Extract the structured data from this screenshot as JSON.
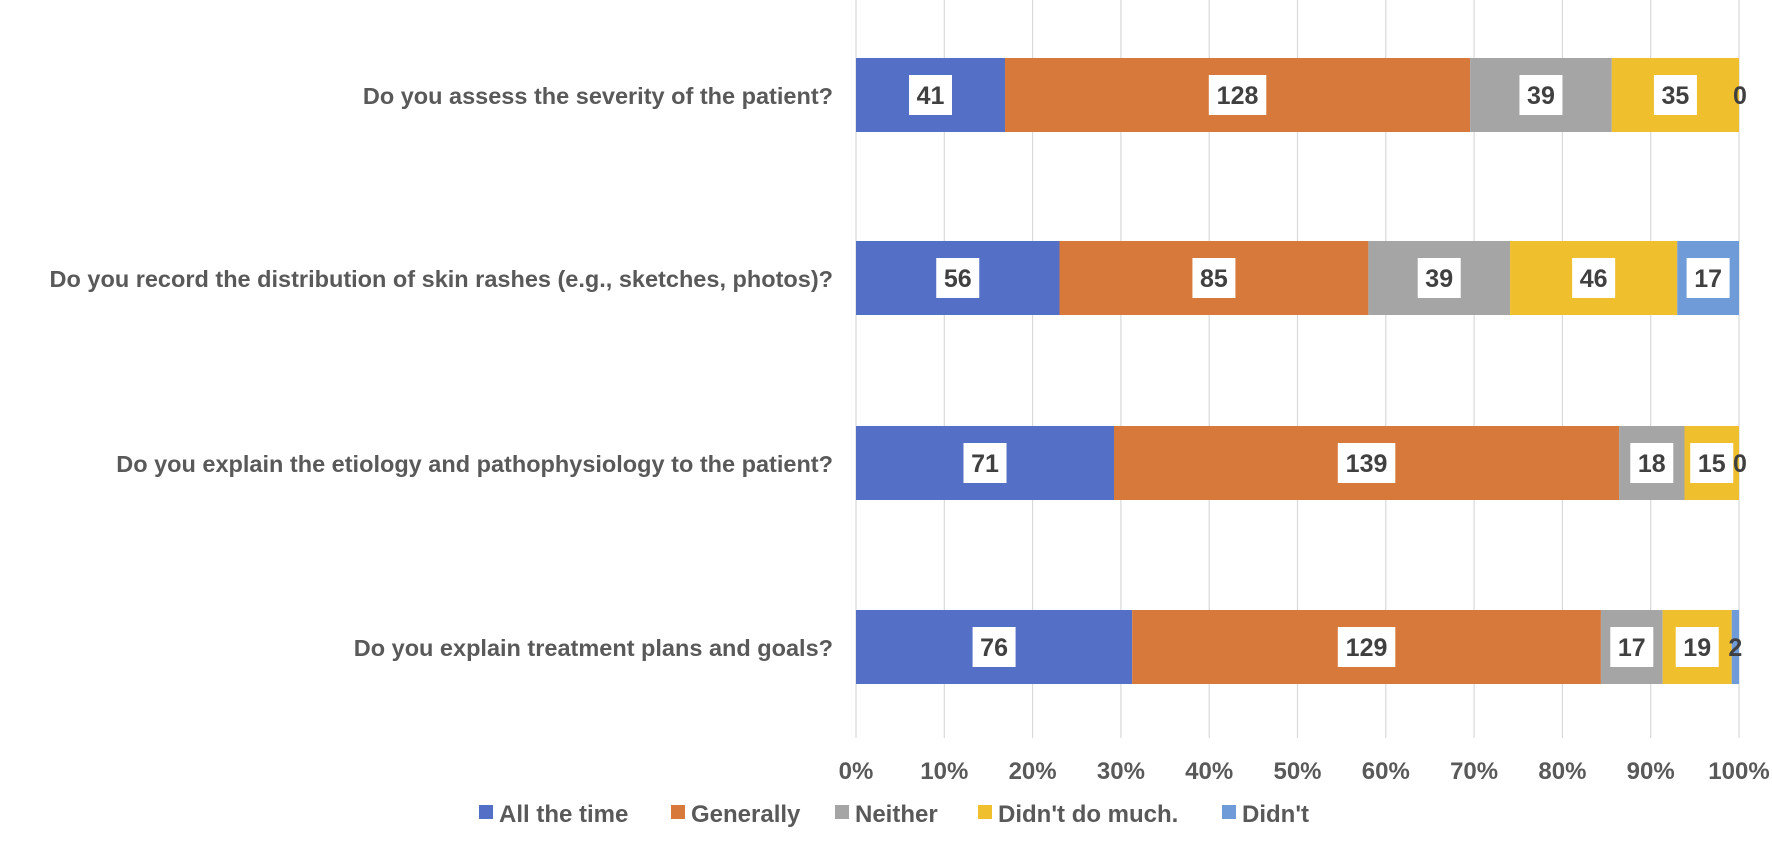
{
  "chart_data": {
    "type": "bar",
    "orientation": "horizontal",
    "stacked": "percent",
    "title": "",
    "xlabel": "",
    "ylabel": "",
    "xlim": [
      0,
      100
    ],
    "grid": true,
    "legend_position": "bottom",
    "categories": [
      "Do you assess the severity of the patient?",
      "Do you record the distribution of skin rashes (e.g., sketches, photos)?",
      "Do you explain the etiology and pathophysiology to the patient?",
      "Do you explain treatment plans and goals?"
    ],
    "x_ticks": [
      "0%",
      "10%",
      "20%",
      "30%",
      "40%",
      "50%",
      "60%",
      "70%",
      "80%",
      "90%",
      "100%"
    ],
    "series": [
      {
        "name": "All the time",
        "color": "#5470C6",
        "values": [
          41,
          56,
          71,
          76
        ]
      },
      {
        "name": "Generally",
        "color": "#D6793A",
        "values": [
          128,
          85,
          139,
          129
        ]
      },
      {
        "name": "Neither",
        "color": "#A5A5A5",
        "values": [
          39,
          39,
          18,
          17
        ]
      },
      {
        "name": "Didn't do much.",
        "color": "#F0BF2E",
        "values": [
          35,
          46,
          15,
          19
        ]
      },
      {
        "name": "Didn't",
        "color": "#6F9BD8",
        "values": [
          0,
          17,
          0,
          2
        ]
      }
    ]
  }
}
